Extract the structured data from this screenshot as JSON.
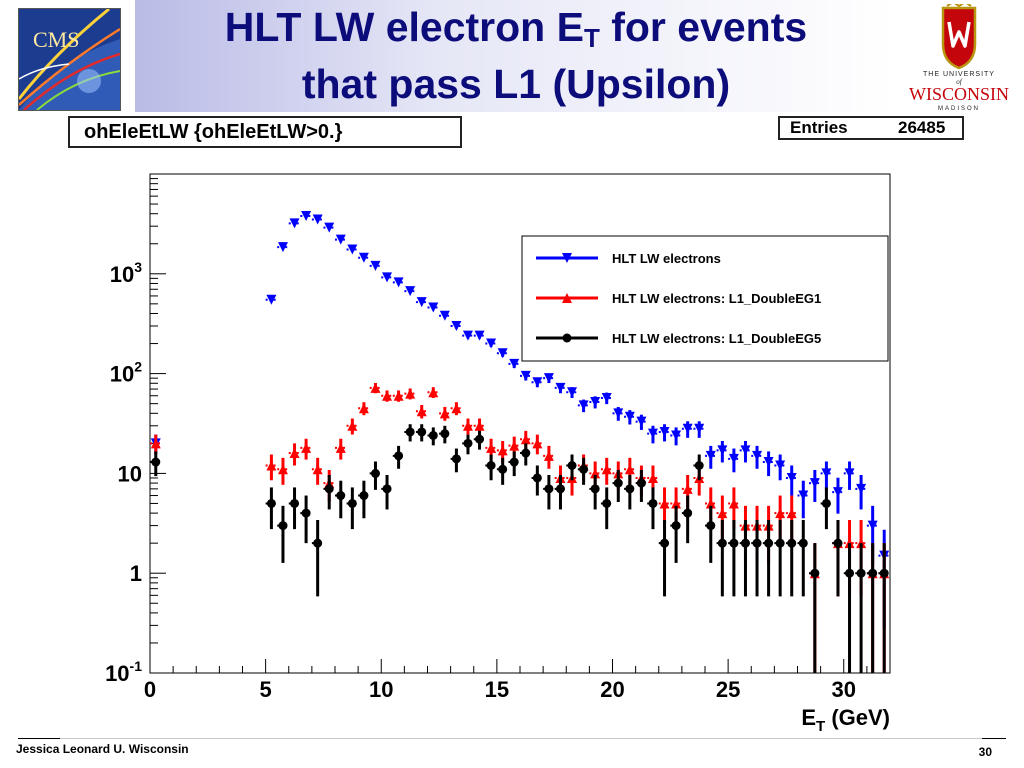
{
  "slide": {
    "title_main": "HLT LW electron E",
    "title_sub": "T",
    "title_rest": " for events",
    "title_line2": "that pass L1 (Upsilon)",
    "footer_author": "Jessica Leonard U. Wisconsin",
    "page_number": "30",
    "logo_uw_line1": "THE UNIVERSITY",
    "logo_uw_line2": "of",
    "logo_uw_line3": "WISCONSIN",
    "logo_uw_line4": "MADISON",
    "logo_cms": "CMS"
  },
  "stats": {
    "histogram_name": "ohEleEtLW {ohEleEtLW>0.}",
    "entries_label": "Entries",
    "entries_value": "26485"
  },
  "chart_data": {
    "type": "scatter",
    "title": "",
    "xlabel": "E_T (GeV)",
    "ylabel": "",
    "xlim": [
      0,
      32
    ],
    "ylim": [
      0.1,
      10000
    ],
    "yscale": "log",
    "x_ticks": [
      "0",
      "5",
      "10",
      "15",
      "20",
      "25",
      "30"
    ],
    "y_ticks": [
      {
        "base": "10",
        "exp": "-1"
      },
      {
        "base": "1",
        "exp": ""
      },
      {
        "base": "10",
        "exp": ""
      },
      {
        "base": "10",
        "exp": "2"
      },
      {
        "base": "10",
        "exp": "3"
      }
    ],
    "legend_position": "top-right",
    "series": [
      {
        "name": "HLT LW electrons",
        "color": "#0000ff",
        "marker": "triangle-down",
        "points": [
          [
            0.25,
            20
          ],
          [
            5.25,
            550
          ],
          [
            5.75,
            1850
          ],
          [
            6.25,
            3200
          ],
          [
            6.75,
            3800
          ],
          [
            7.25,
            3500
          ],
          [
            7.75,
            2900
          ],
          [
            8.25,
            2200
          ],
          [
            8.75,
            1750
          ],
          [
            9.25,
            1450
          ],
          [
            9.75,
            1200
          ],
          [
            10.25,
            920
          ],
          [
            10.75,
            820
          ],
          [
            11.25,
            670
          ],
          [
            11.75,
            520
          ],
          [
            12.25,
            460
          ],
          [
            12.75,
            380
          ],
          [
            13.25,
            300
          ],
          [
            13.75,
            240
          ],
          [
            14.25,
            240
          ],
          [
            14.75,
            200
          ],
          [
            15.25,
            160
          ],
          [
            15.75,
            125
          ],
          [
            16.25,
            95
          ],
          [
            16.75,
            82
          ],
          [
            17.25,
            90
          ],
          [
            17.75,
            72
          ],
          [
            18.25,
            65
          ],
          [
            18.75,
            48
          ],
          [
            19.25,
            52
          ],
          [
            19.75,
            57
          ],
          [
            20.25,
            40
          ],
          [
            20.75,
            37
          ],
          [
            21.25,
            33
          ],
          [
            21.75,
            25
          ],
          [
            22.25,
            26
          ],
          [
            22.75,
            24
          ],
          [
            23.25,
            28
          ],
          [
            23.75,
            28
          ],
          [
            24.25,
            15
          ],
          [
            24.75,
            17
          ],
          [
            25.25,
            14
          ],
          [
            25.75,
            17
          ],
          [
            26.25,
            15
          ],
          [
            26.75,
            13
          ],
          [
            27.25,
            12
          ],
          [
            27.75,
            9
          ],
          [
            28.25,
            6
          ],
          [
            28.75,
            8
          ],
          [
            29.25,
            10
          ],
          [
            29.75,
            6.5
          ],
          [
            30.25,
            10
          ],
          [
            30.75,
            7
          ],
          [
            31.25,
            3
          ],
          [
            31.75,
            1.5
          ]
        ]
      },
      {
        "name": "HLT LW electrons: L1_DoubleEG1",
        "color": "#ff0000",
        "marker": "triangle-up",
        "points": [
          [
            0.25,
            20
          ],
          [
            5.25,
            12
          ],
          [
            5.75,
            11
          ],
          [
            6.25,
            16
          ],
          [
            6.75,
            18
          ],
          [
            7.25,
            11
          ],
          [
            7.75,
            8
          ],
          [
            8.25,
            18
          ],
          [
            8.75,
            30
          ],
          [
            9.25,
            45
          ],
          [
            9.75,
            72
          ],
          [
            10.25,
            60
          ],
          [
            10.75,
            60
          ],
          [
            11.25,
            63
          ],
          [
            11.75,
            42
          ],
          [
            12.25,
            65
          ],
          [
            12.75,
            40
          ],
          [
            13.25,
            45
          ],
          [
            13.75,
            30
          ],
          [
            14.25,
            30
          ],
          [
            14.75,
            18
          ],
          [
            15.25,
            17
          ],
          [
            15.75,
            19
          ],
          [
            16.25,
            22
          ],
          [
            16.75,
            20
          ],
          [
            17.25,
            15
          ],
          [
            17.75,
            9
          ],
          [
            18.25,
            9
          ],
          [
            18.75,
            12
          ],
          [
            19.25,
            10
          ],
          [
            19.75,
            11
          ],
          [
            20.25,
            10
          ],
          [
            20.75,
            11
          ],
          [
            21.25,
            9
          ],
          [
            21.75,
            9
          ],
          [
            22.25,
            5
          ],
          [
            22.75,
            5
          ],
          [
            23.25,
            7
          ],
          [
            23.75,
            9
          ],
          [
            24.25,
            5
          ],
          [
            24.75,
            4
          ],
          [
            25.25,
            5
          ],
          [
            25.75,
            3
          ],
          [
            26.25,
            3
          ],
          [
            26.75,
            3
          ],
          [
            27.25,
            4
          ],
          [
            27.75,
            4
          ],
          [
            28.75,
            1
          ],
          [
            29.75,
            2
          ],
          [
            30.25,
            2
          ],
          [
            30.75,
            2
          ],
          [
            31.25,
            1
          ],
          [
            31.75,
            1
          ]
        ]
      },
      {
        "name": "HLT LW electrons: L1_DoubleEG5",
        "color": "#000000",
        "marker": "circle",
        "points": [
          [
            0.25,
            13
          ],
          [
            5.25,
            5
          ],
          [
            5.75,
            3
          ],
          [
            6.25,
            5
          ],
          [
            6.75,
            4
          ],
          [
            7.25,
            2
          ],
          [
            7.75,
            7
          ],
          [
            8.25,
            6
          ],
          [
            8.75,
            5
          ],
          [
            9.25,
            6
          ],
          [
            9.75,
            10
          ],
          [
            10.25,
            7
          ],
          [
            10.75,
            15
          ],
          [
            11.25,
            26
          ],
          [
            11.75,
            26
          ],
          [
            12.25,
            24
          ],
          [
            12.75,
            25
          ],
          [
            13.25,
            14
          ],
          [
            13.75,
            20
          ],
          [
            14.25,
            22
          ],
          [
            14.75,
            12
          ],
          [
            15.25,
            11
          ],
          [
            15.75,
            13
          ],
          [
            16.25,
            16
          ],
          [
            16.75,
            9
          ],
          [
            17.25,
            7
          ],
          [
            17.75,
            7
          ],
          [
            18.25,
            12
          ],
          [
            18.75,
            11
          ],
          [
            19.25,
            7
          ],
          [
            19.75,
            5
          ],
          [
            20.25,
            8
          ],
          [
            20.75,
            7
          ],
          [
            21.25,
            8
          ],
          [
            21.75,
            5
          ],
          [
            22.25,
            2
          ],
          [
            22.75,
            3
          ],
          [
            23.25,
            4
          ],
          [
            23.75,
            12
          ],
          [
            24.25,
            3
          ],
          [
            24.75,
            2
          ],
          [
            25.25,
            2
          ],
          [
            25.75,
            2
          ],
          [
            26.25,
            2
          ],
          [
            26.75,
            2
          ],
          [
            27.25,
            2
          ],
          [
            27.75,
            2
          ],
          [
            28.25,
            2
          ],
          [
            28.75,
            1
          ],
          [
            29.25,
            5
          ],
          [
            29.75,
            2
          ],
          [
            30.25,
            1
          ],
          [
            30.75,
            1
          ],
          [
            31.25,
            1
          ],
          [
            31.75,
            1
          ]
        ]
      }
    ]
  }
}
